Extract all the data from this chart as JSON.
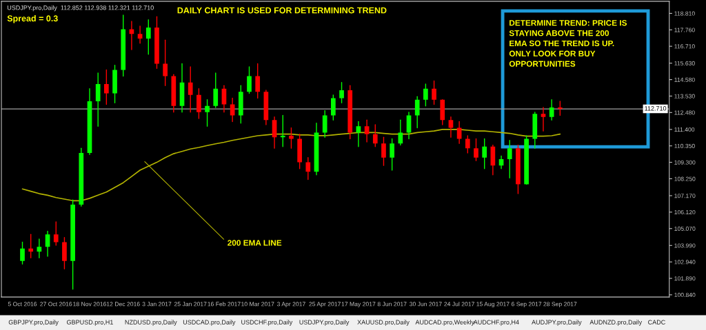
{
  "chart_data": {
    "type": "candlestick",
    "title": "DAILY CHART IS USED FOR DETERMINING TREND",
    "categories": [
      "5 Oct 2016",
      null,
      null,
      null,
      "27 Oct 2016",
      null,
      null,
      null,
      "18 Nov 2016",
      null,
      null,
      null,
      "12 Dec 2016",
      null,
      null,
      null,
      "3 Jan 2017",
      null,
      null,
      null,
      "25 Jan 2017",
      null,
      null,
      null,
      "16 Feb 2017",
      null,
      null,
      null,
      "10 Mar 2017",
      null,
      null,
      null,
      "3 Apr 2017",
      null,
      null,
      null,
      "25 Apr 2017",
      null,
      null,
      null,
      "17 May 2017",
      null,
      null,
      null,
      "8 Jun 2017",
      null,
      null,
      null,
      "30 Jun 2017",
      null,
      null,
      null,
      "24 Jul 2017",
      null,
      null,
      null,
      "15 Aug 2017",
      null,
      null,
      null,
      "6 Sep 2017",
      null,
      null,
      null,
      "28 Sep 2017"
    ],
    "ohlc": [
      [
        103.0,
        104.2,
        102.8,
        103.8
      ],
      [
        103.8,
        104.7,
        103.2,
        103.6
      ],
      [
        103.6,
        104.4,
        103.2,
        103.9
      ],
      [
        103.9,
        104.9,
        103.3,
        104.7
      ],
      [
        104.7,
        105.5,
        104.0,
        104.2
      ],
      [
        104.2,
        104.5,
        102.5,
        103.0
      ],
      [
        103.0,
        106.9,
        101.2,
        106.6
      ],
      [
        106.6,
        110.2,
        106.5,
        109.9
      ],
      [
        109.9,
        114.0,
        109.8,
        113.2
      ],
      [
        113.2,
        115.0,
        111.6,
        114.3
      ],
      [
        114.3,
        115.2,
        113.0,
        113.7
      ],
      [
        113.7,
        115.5,
        113.1,
        115.2
      ],
      [
        115.2,
        118.7,
        114.8,
        117.8
      ],
      [
        117.8,
        118.3,
        116.5,
        117.5
      ],
      [
        117.5,
        118.0,
        116.9,
        117.2
      ],
      [
        117.2,
        118.4,
        116.2,
        117.9
      ],
      [
        117.9,
        118.6,
        115.3,
        115.6
      ],
      [
        115.6,
        117.1,
        114.2,
        114.8
      ],
      [
        114.8,
        114.9,
        112.5,
        112.9
      ],
      [
        112.9,
        115.6,
        112.5,
        114.4
      ],
      [
        114.4,
        115.4,
        112.5,
        113.6
      ],
      [
        113.6,
        114.0,
        112.1,
        112.5
      ],
      [
        112.5,
        113.3,
        111.6,
        112.9
      ],
      [
        112.9,
        115.0,
        112.8,
        114.0
      ],
      [
        114.0,
        114.2,
        112.5,
        113.0
      ],
      [
        113.0,
        113.4,
        111.9,
        112.3
      ],
      [
        112.3,
        114.2,
        111.8,
        113.8
      ],
      [
        113.8,
        115.4,
        113.7,
        114.8
      ],
      [
        114.8,
        115.6,
        113.4,
        113.8
      ],
      [
        113.8,
        113.9,
        111.7,
        112.0
      ],
      [
        112.0,
        112.2,
        110.2,
        110.9
      ],
      [
        110.9,
        112.3,
        110.3,
        111.0
      ],
      [
        111.0,
        111.5,
        110.2,
        110.8
      ],
      [
        110.8,
        111.1,
        108.9,
        109.3
      ],
      [
        109.3,
        109.6,
        108.2,
        108.7
      ],
      [
        108.7,
        111.8,
        108.5,
        111.2
      ],
      [
        111.2,
        112.6,
        110.9,
        112.3
      ],
      [
        112.3,
        113.6,
        112.0,
        113.4
      ],
      [
        113.4,
        114.4,
        113.1,
        113.9
      ],
      [
        113.9,
        114.2,
        110.8,
        111.2
      ],
      [
        111.2,
        111.9,
        110.3,
        111.6
      ],
      [
        111.6,
        112.0,
        110.6,
        111.1
      ],
      [
        111.1,
        111.7,
        110.3,
        110.5
      ],
      [
        110.5,
        110.9,
        109.1,
        109.6
      ],
      [
        109.6,
        110.8,
        108.8,
        110.5
      ],
      [
        110.5,
        112.0,
        110.4,
        111.2
      ],
      [
        111.2,
        112.5,
        110.8,
        112.3
      ],
      [
        112.3,
        113.5,
        111.5,
        113.3
      ],
      [
        113.3,
        114.3,
        112.9,
        114.0
      ],
      [
        114.0,
        114.5,
        113.0,
        113.3
      ],
      [
        113.3,
        113.3,
        111.7,
        112.0
      ],
      [
        112.0,
        112.2,
        110.9,
        111.5
      ],
      [
        111.5,
        111.9,
        110.5,
        110.8
      ],
      [
        110.8,
        111.0,
        109.9,
        110.2
      ],
      [
        110.2,
        110.8,
        109.4,
        109.6
      ],
      [
        109.6,
        110.8,
        108.9,
        110.3
      ],
      [
        110.3,
        110.4,
        108.5,
        109.1
      ],
      [
        109.1,
        109.7,
        108.9,
        109.5
      ],
      [
        109.5,
        110.7,
        108.3,
        110.2
      ],
      [
        110.2,
        110.4,
        107.3,
        107.9
      ],
      [
        107.9,
        111.0,
        107.9,
        110.8
      ],
      [
        110.8,
        112.5,
        110.2,
        112.4
      ],
      [
        112.4,
        112.8,
        111.3,
        112.2
      ],
      [
        112.2,
        113.3,
        112.0,
        112.8
      ],
      [
        112.8,
        113.2,
        112.3,
        112.71
      ]
    ],
    "colors": [
      "#00ff00",
      "#ff0000",
      "#00ff00",
      "#00ff00",
      "#ff0000",
      "#ff0000",
      "#00ff00",
      "#00ff00",
      "#00ff00",
      "#00ff00",
      "#ff0000",
      "#00ff00",
      "#00ff00",
      "#ff0000",
      "#ff0000",
      "#00ff00",
      "#ff0000",
      "#ff0000",
      "#ff0000",
      "#00ff00",
      "#ff0000",
      "#ff0000",
      "#00ff00",
      "#00ff00",
      "#ff0000",
      "#ff0000",
      "#00ff00",
      "#00ff00",
      "#ff0000",
      "#ff0000",
      "#ff0000",
      "#00ff00",
      "#ff0000",
      "#ff0000",
      "#ff0000",
      "#00ff00",
      "#00ff00",
      "#00ff00",
      "#00ff00",
      "#ff0000",
      "#00ff00",
      "#ff0000",
      "#ff0000",
      "#ff0000",
      "#00ff00",
      "#00ff00",
      "#00ff00",
      "#00ff00",
      "#00ff00",
      "#ff0000",
      "#ff0000",
      "#ff0000",
      "#ff0000",
      "#ff0000",
      "#ff0000",
      "#00ff00",
      "#ff0000",
      "#00ff00",
      "#00ff00",
      "#ff0000",
      "#00ff00",
      "#00ff00",
      "#ff0000",
      "#00ff00",
      "#ff0000"
    ],
    "series": [
      {
        "type": "line",
        "color": "#b4b400",
        "values": [
          107.6,
          107.45,
          107.3,
          107.2,
          107.05,
          106.95,
          106.85,
          106.85,
          107.0,
          107.2,
          107.4,
          107.7,
          108.0,
          108.4,
          108.8,
          109.05,
          109.3,
          109.6,
          109.85,
          110.0,
          110.15,
          110.25,
          110.37,
          110.48,
          110.58,
          110.7,
          110.8,
          110.9,
          111.0,
          111.05,
          111.1,
          111.1,
          111.1,
          111.05,
          111.05,
          111.0,
          111.0,
          111.05,
          111.1,
          111.15,
          111.2,
          111.2,
          111.2,
          111.15,
          111.1,
          111.1,
          111.1,
          111.2,
          111.25,
          111.3,
          111.4,
          111.4,
          111.4,
          111.35,
          111.3,
          111.3,
          111.25,
          111.2,
          111.15,
          111.05,
          110.97,
          110.97,
          110.97,
          111.0,
          111.1
        ]
      }
    ],
    "ylim": [
      100.7,
      119.58
    ],
    "yticks": [
      {
        "value": 100.84,
        "label": "100.840"
      },
      {
        "value": 101.89,
        "label": "101.890"
      },
      {
        "value": 102.94,
        "label": "102.940"
      },
      {
        "value": 103.99,
        "label": "103.990"
      },
      {
        "value": 105.07,
        "label": "105.070"
      },
      {
        "value": 106.12,
        "label": "106.120"
      },
      {
        "value": 107.17,
        "label": "107.170"
      },
      {
        "value": 108.25,
        "label": "108.250"
      },
      {
        "value": 109.3,
        "label": "109.300"
      },
      {
        "value": 110.35,
        "label": "110.350"
      },
      {
        "value": 111.4,
        "label": "111.400"
      },
      {
        "value": 112.48,
        "label": "112.480"
      },
      {
        "value": 113.53,
        "label": "113.530"
      },
      {
        "value": 114.58,
        "label": "114.580"
      },
      {
        "value": 115.63,
        "label": "115.630"
      },
      {
        "value": 116.71,
        "label": "116.710"
      },
      {
        "value": 117.76,
        "label": "117.760"
      },
      {
        "value": 118.81,
        "label": "118.810"
      }
    ],
    "ref_lines": [
      {
        "axis": "y",
        "value": 112.71,
        "label": "112.710",
        "color": "#a0a0a0"
      }
    ],
    "grid": false,
    "legend": false,
    "annotations": [
      "USDJPY.pro,Daily  112.852 112.938 112.321 112.710",
      "Spread = 0.3",
      "200 EMA LINE",
      "DETERMINE TREND: PRICE IS\nSTAYING ABOVE THE 200\nEMA SO THE TREND IS UP.\nONLY LOOK FOR BUY\nOPPORTUNITIES",
      "GBPJPY.pro,Daily",
      "GBPUSD.pro,H1",
      "NZDUSD.pro,Daily",
      "USDCAD.pro,Daily",
      "USDCHF.pro,Daily",
      "USDJPY.pro,Daily",
      "XAUUSD.pro,Daily",
      "AUDCAD.pro,Weekly",
      "AUDCHF.pro,H4",
      "AUDJPY.pro,Daily",
      "AUDNZD.pro,Daily",
      "CADC"
    ]
  }
}
